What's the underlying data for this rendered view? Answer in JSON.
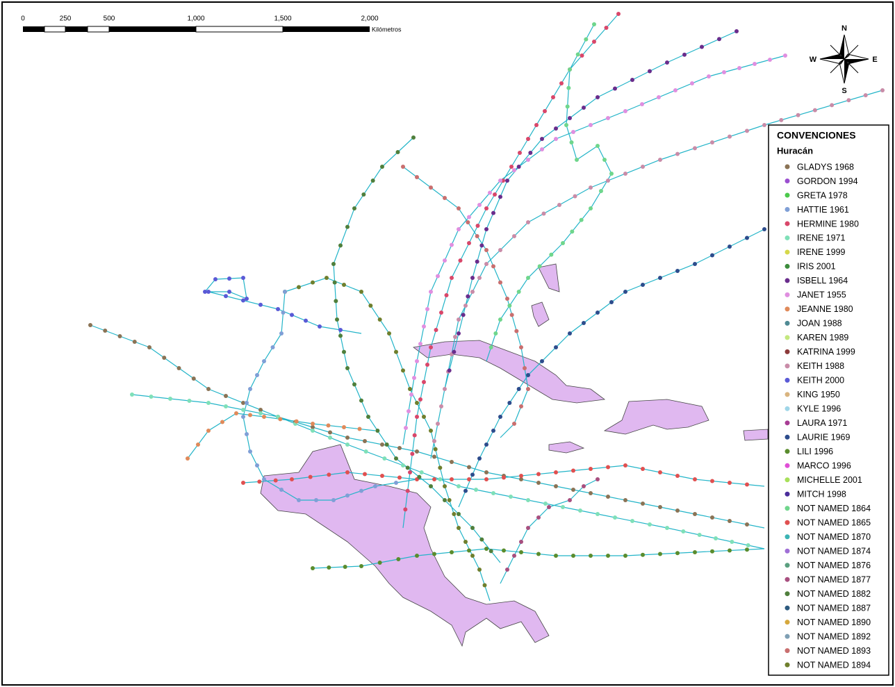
{
  "scale": {
    "labels": [
      "0",
      "250",
      "500",
      "1,000",
      "1,500",
      "2,000"
    ],
    "unit": "Kilómetros"
  },
  "compass": {
    "n": "N",
    "s": "S",
    "e": "E",
    "w": "W"
  },
  "legend": {
    "title": "CONVENCIONES",
    "subtitle": "Huracán",
    "items": [
      {
        "name": "GLADYS 1968",
        "color": "#8b7355"
      },
      {
        "name": "GORDON 1994",
        "color": "#9b4fd0"
      },
      {
        "name": "GRETA 1978",
        "color": "#4cc94c"
      },
      {
        "name": "HATTIE 1961",
        "color": "#7f9fd6"
      },
      {
        "name": "HERMINE 1980",
        "color": "#d9476a"
      },
      {
        "name": "IRENE 1971",
        "color": "#7fe0b8"
      },
      {
        "name": "IRENE 1999",
        "color": "#d6d84a"
      },
      {
        "name": "IRIS 2001",
        "color": "#3c8c3c"
      },
      {
        "name": "ISBELL 1964",
        "color": "#6a2d8c"
      },
      {
        "name": "JANET 1955",
        "color": "#e08fe0"
      },
      {
        "name": "JEANNE 1980",
        "color": "#e08a5a"
      },
      {
        "name": "JOAN 1988",
        "color": "#4f8a94"
      },
      {
        "name": "KAREN 1989",
        "color": "#c4e87f"
      },
      {
        "name": "KATRINA 1999",
        "color": "#8c3a3a"
      },
      {
        "name": "KEITH 1988",
        "color": "#c98ca8"
      },
      {
        "name": "KEITH 2000",
        "color": "#5a5ad6"
      },
      {
        "name": "KING 1950",
        "color": "#d9b47f"
      },
      {
        "name": "KYLE 1996",
        "color": "#9fd6e8"
      },
      {
        "name": "LAURA 1971",
        "color": "#a83c94"
      },
      {
        "name": "LAURIE 1969",
        "color": "#2d4c8c"
      },
      {
        "name": "LILI 1996",
        "color": "#5a8c2d"
      },
      {
        "name": "MARCO 1996",
        "color": "#e04fd6"
      },
      {
        "name": "MICHELLE 2001",
        "color": "#a8e05a"
      },
      {
        "name": "MITCH 1998",
        "color": "#4a2d9b"
      },
      {
        "name": "NOT NAMED 1864",
        "color": "#6fd68c"
      },
      {
        "name": "NOT NAMED 1865",
        "color": "#e05050"
      },
      {
        "name": "NOT NAMED 1870",
        "color": "#3cb4b4"
      },
      {
        "name": "NOT NAMED 1874",
        "color": "#9f6fd6"
      },
      {
        "name": "NOT NAMED 1876",
        "color": "#5a9f7f"
      },
      {
        "name": "NOT NAMED 1877",
        "color": "#a84f7f"
      },
      {
        "name": "NOT NAMED 1882",
        "color": "#4f7f3c"
      },
      {
        "name": "NOT NAMED 1887",
        "color": "#2d5a7f"
      },
      {
        "name": "NOT NAMED 1890",
        "color": "#d6a83c"
      },
      {
        "name": "NOT NAMED 1892",
        "color": "#7f9fb4"
      },
      {
        "name": "NOT NAMED 1893",
        "color": "#c96f6f"
      },
      {
        "name": "NOT NAMED 1894",
        "color": "#6f7f2d"
      }
    ]
  }
}
